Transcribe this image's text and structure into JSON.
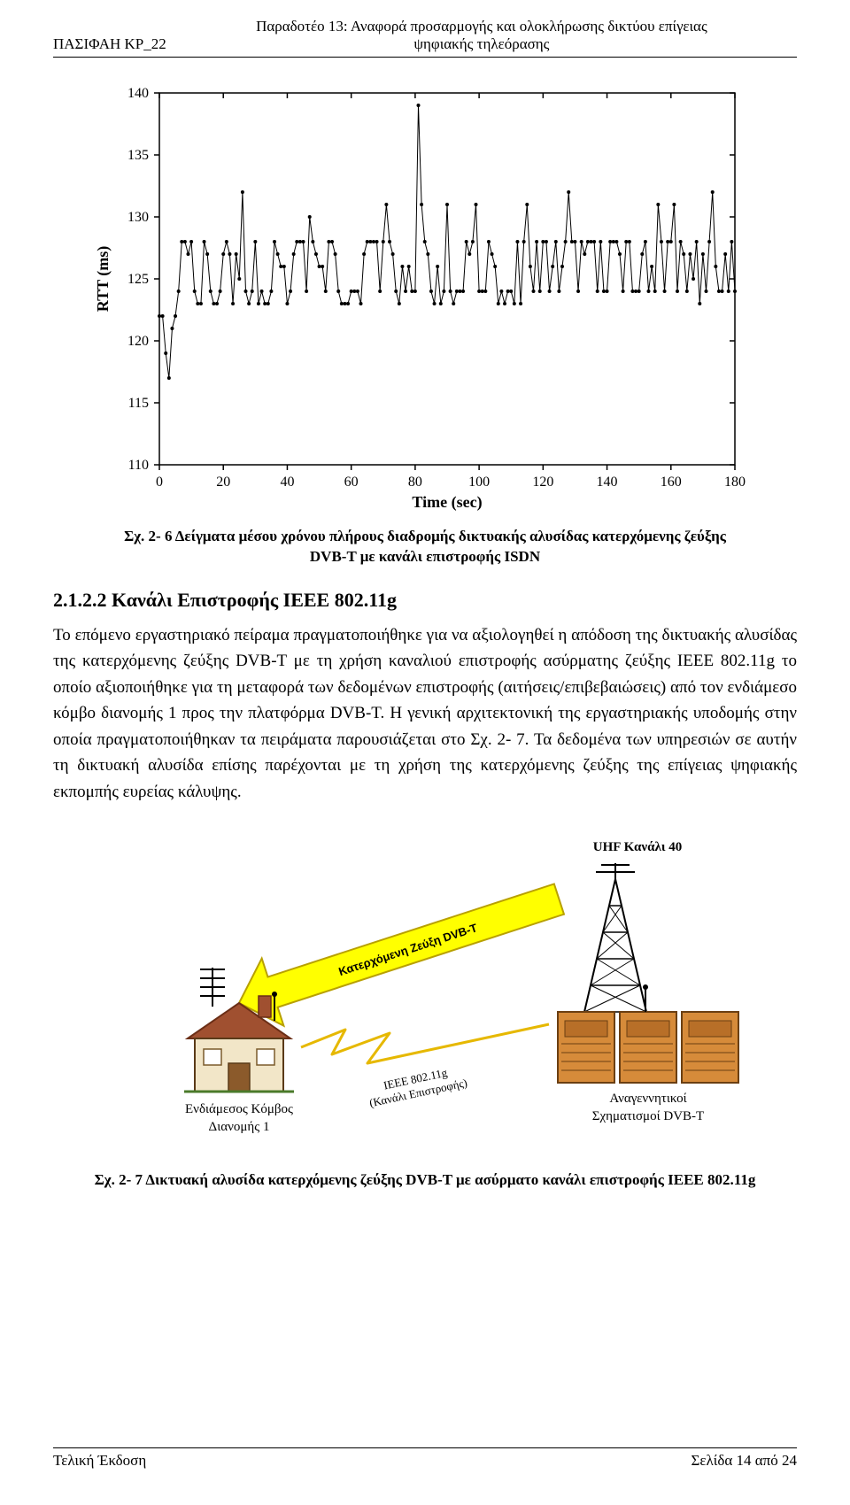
{
  "header": {
    "left": "ΠΑΣΙΦΑΗ ΚΡ_22",
    "center_line1": "Παραδοτέο 13: Αναφορά προσαρμογής και ολοκλήρωσης δικτύου επίγειας",
    "center_line2": "ψηφιακής τηλεόρασης"
  },
  "chart": {
    "type": "line",
    "title_fontsize": 14,
    "xlabel": "Time (sec)",
    "ylabel": "RTT (ms)",
    "label_fontsize": 14,
    "xlim": [
      0,
      180
    ],
    "ylim": [
      110,
      140
    ],
    "xtick_step": 20,
    "ytick_step": 5,
    "background_color": "#ffffff",
    "frame_color": "#000000",
    "line_color": "#000000",
    "marker_color": "#000000",
    "marker_style": "circle",
    "marker_size": 2.0,
    "line_width": 1.0,
    "data": [
      [
        0,
        122
      ],
      [
        1,
        122
      ],
      [
        2,
        119
      ],
      [
        3,
        117
      ],
      [
        4,
        121
      ],
      [
        5,
        122
      ],
      [
        6,
        124
      ],
      [
        7,
        128
      ],
      [
        8,
        128
      ],
      [
        9,
        127
      ],
      [
        10,
        128
      ],
      [
        11,
        124
      ],
      [
        12,
        123
      ],
      [
        13,
        123
      ],
      [
        14,
        128
      ],
      [
        15,
        127
      ],
      [
        16,
        124
      ],
      [
        17,
        123
      ],
      [
        18,
        123
      ],
      [
        19,
        124
      ],
      [
        20,
        127
      ],
      [
        21,
        128
      ],
      [
        22,
        127
      ],
      [
        23,
        123
      ],
      [
        24,
        127
      ],
      [
        25,
        125
      ],
      [
        26,
        132
      ],
      [
        27,
        124
      ],
      [
        28,
        123
      ],
      [
        29,
        124
      ],
      [
        30,
        128
      ],
      [
        31,
        123
      ],
      [
        32,
        124
      ],
      [
        33,
        123
      ],
      [
        34,
        123
      ],
      [
        35,
        124
      ],
      [
        36,
        128
      ],
      [
        37,
        127
      ],
      [
        38,
        126
      ],
      [
        39,
        126
      ],
      [
        40,
        123
      ],
      [
        41,
        124
      ],
      [
        42,
        127
      ],
      [
        43,
        128
      ],
      [
        44,
        128
      ],
      [
        45,
        128
      ],
      [
        46,
        124
      ],
      [
        47,
        130
      ],
      [
        48,
        128
      ],
      [
        49,
        127
      ],
      [
        50,
        126
      ],
      [
        51,
        126
      ],
      [
        52,
        124
      ],
      [
        53,
        128
      ],
      [
        54,
        128
      ],
      [
        55,
        127
      ],
      [
        56,
        124
      ],
      [
        57,
        123
      ],
      [
        58,
        123
      ],
      [
        59,
        123
      ],
      [
        60,
        124
      ],
      [
        61,
        124
      ],
      [
        62,
        124
      ],
      [
        63,
        123
      ],
      [
        64,
        127
      ],
      [
        65,
        128
      ],
      [
        66,
        128
      ],
      [
        67,
        128
      ],
      [
        68,
        128
      ],
      [
        69,
        124
      ],
      [
        70,
        128
      ],
      [
        71,
        131
      ],
      [
        72,
        128
      ],
      [
        73,
        127
      ],
      [
        74,
        124
      ],
      [
        75,
        123
      ],
      [
        76,
        126
      ],
      [
        77,
        124
      ],
      [
        78,
        126
      ],
      [
        79,
        124
      ],
      [
        80,
        124
      ],
      [
        81,
        139
      ],
      [
        82,
        131
      ],
      [
        83,
        128
      ],
      [
        84,
        127
      ],
      [
        85,
        124
      ],
      [
        86,
        123
      ],
      [
        87,
        126
      ],
      [
        88,
        123
      ],
      [
        89,
        124
      ],
      [
        90,
        131
      ],
      [
        91,
        124
      ],
      [
        92,
        123
      ],
      [
        93,
        124
      ],
      [
        94,
        124
      ],
      [
        95,
        124
      ],
      [
        96,
        128
      ],
      [
        97,
        127
      ],
      [
        98,
        128
      ],
      [
        99,
        131
      ],
      [
        100,
        124
      ],
      [
        101,
        124
      ],
      [
        102,
        124
      ],
      [
        103,
        128
      ],
      [
        104,
        127
      ],
      [
        105,
        126
      ],
      [
        106,
        123
      ],
      [
        107,
        124
      ],
      [
        108,
        123
      ],
      [
        109,
        124
      ],
      [
        110,
        124
      ],
      [
        111,
        123
      ],
      [
        112,
        128
      ],
      [
        113,
        123
      ],
      [
        114,
        128
      ],
      [
        115,
        131
      ],
      [
        116,
        126
      ],
      [
        117,
        124
      ],
      [
        118,
        128
      ],
      [
        119,
        124
      ],
      [
        120,
        128
      ],
      [
        121,
        128
      ],
      [
        122,
        124
      ],
      [
        123,
        126
      ],
      [
        124,
        128
      ],
      [
        125,
        124
      ],
      [
        126,
        126
      ],
      [
        127,
        128
      ],
      [
        128,
        132
      ],
      [
        129,
        128
      ],
      [
        130,
        128
      ],
      [
        131,
        124
      ],
      [
        132,
        128
      ],
      [
        133,
        127
      ],
      [
        134,
        128
      ],
      [
        135,
        128
      ],
      [
        136,
        128
      ],
      [
        137,
        124
      ],
      [
        138,
        128
      ],
      [
        139,
        124
      ],
      [
        140,
        124
      ],
      [
        141,
        128
      ],
      [
        142,
        128
      ],
      [
        143,
        128
      ],
      [
        144,
        127
      ],
      [
        145,
        124
      ],
      [
        146,
        128
      ],
      [
        147,
        128
      ],
      [
        148,
        124
      ],
      [
        149,
        124
      ],
      [
        150,
        124
      ],
      [
        151,
        127
      ],
      [
        152,
        128
      ],
      [
        153,
        124
      ],
      [
        154,
        126
      ],
      [
        155,
        124
      ],
      [
        156,
        131
      ],
      [
        157,
        128
      ],
      [
        158,
        124
      ],
      [
        159,
        128
      ],
      [
        160,
        128
      ],
      [
        161,
        131
      ],
      [
        162,
        124
      ],
      [
        163,
        128
      ],
      [
        164,
        127
      ],
      [
        165,
        124
      ],
      [
        166,
        127
      ],
      [
        167,
        125
      ],
      [
        168,
        128
      ],
      [
        169,
        123
      ],
      [
        170,
        127
      ],
      [
        171,
        124
      ],
      [
        172,
        128
      ],
      [
        173,
        132
      ],
      [
        174,
        126
      ],
      [
        175,
        124
      ],
      [
        176,
        124
      ],
      [
        177,
        127
      ],
      [
        178,
        124
      ],
      [
        179,
        128
      ],
      [
        180,
        124
      ]
    ]
  },
  "caption1_line1": "Σχ. 2- 6 Δείγματα μέσου χρόνου πλήρους διαδρομής δικτυακής αλυσίδας κατερχόμενης ζεύξης",
  "caption1_line2": "DVB-T με κανάλι επιστροφής ISDN",
  "section_heading": "2.1.2.2  Κανάλι Επιστροφής IEEE 802.11g",
  "body": "Το επόμενο εργαστηριακό πείραμα πραγματοποιήθηκε για να αξιολογηθεί η απόδοση της δικτυακής αλυσίδας της κατερχόμενης ζεύξης DVB-T με τη χρήση καναλιού επιστροφής ασύρματης ζεύξης IEEE 802.11g το οποίο αξιοποιήθηκε για τη μεταφορά των δεδομένων επιστροφής (αιτήσεις/επιβεβαιώσεις) από τον ενδιάμεσο κόμβο διανομής 1 προς την πλατφόρμα DVB-T. Η γενική αρχιτεκτονική της εργαστηριακής υποδομής στην οποία πραγματοποιήθηκαν τα πειράματα παρουσιάζεται στο Σχ. 2- 7. Τα δεδομένα των υπηρεσιών σε αυτήν τη δικτυακή αλυσίδα επίσης παρέχονται με τη χρήση της κατερχόμενης ζεύξης της επίγειας ψηφιακής εκπομπής ευρείας κάλυψης.",
  "diagram": {
    "type": "infographic",
    "background_color": "#ffffff",
    "arrow": {
      "fill": "#ffff00",
      "outline": "#b8a000",
      "label": "Κατερχόμενη Ζεύξη DVB-T",
      "label_fontsize": 13,
      "label_fontweight": "bold"
    },
    "uhf_label": "UHF Κανάλι 40",
    "uhf_fontsize": 15,
    "uhf_fontweight": "bold",
    "tower_color": "#000000",
    "racks": {
      "fill": "#d68b3a",
      "outline": "#6b3f12",
      "panel_fill": "#b86f28"
    },
    "wifi_wave_color": "#e6b800",
    "wifi_label_line1": "IEEE 802.11g",
    "wifi_label_line2": "(Κανάλι Επιστροφής)",
    "wifi_label_fontsize": 13,
    "house": {
      "wall": "#f2e6c8",
      "roof": "#a05030",
      "roof_line": "#6b2e16",
      "window": "#ffffff",
      "window_frame": "#7a5a2a",
      "door": "#8b5a2b",
      "outline": "#5a3a18",
      "antenna_color": "#000000"
    },
    "node_label_line1": "Ενδιάμεσος Κόμβος",
    "node_label_line2": "Διανομής 1",
    "rack_label_line1": "Αναγεννητικοί",
    "rack_label_line2": "Σχηματισμοί DVB-T",
    "label_fontsize": 15
  },
  "caption2": "Σχ. 2- 7 Δικτυακή αλυσίδα κατερχόμενης ζεύξης DVB-T με ασύρματο κανάλι επιστροφής IEEE 802.11g",
  "footer": {
    "left": "Τελική Έκδοση",
    "right": "Σελίδα 14 από 24"
  }
}
